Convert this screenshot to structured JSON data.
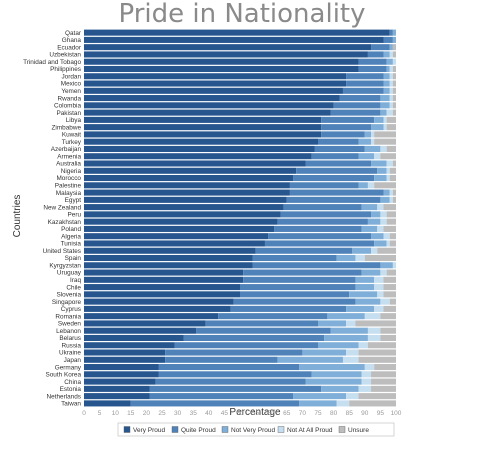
{
  "chart_data": {
    "type": "bar",
    "orientation": "horizontal",
    "stacked": true,
    "title": "Pride in Nationality",
    "xlabel": "Percentage",
    "ylabel": "Countries",
    "xlim": [
      0,
      100
    ],
    "xticks": [
      "0",
      "5",
      "10",
      "15",
      "20",
      "25",
      "30",
      "35",
      "40",
      "45",
      "50",
      "55",
      "60",
      "65",
      "70",
      "75",
      "80",
      "85",
      "90",
      "95",
      "100"
    ],
    "grid": false,
    "legend_position": "bottom",
    "colors": [
      "#27568f",
      "#4f82b8",
      "#7fafd8",
      "#c5def0",
      "#bdbdbd"
    ],
    "categories": [
      "Qatar",
      "Ghana",
      "Ecuador",
      "Uzbekistan",
      "Trinidad and Tobago",
      "Philippines",
      "Jordan",
      "Mexico",
      "Yemen",
      "Rwanda",
      "Colombia",
      "Pakistan",
      "Libya",
      "Zimbabwe",
      "Kuwait",
      "Turkey",
      "Azerbaijan",
      "Armenia",
      "Australia",
      "Nigeria",
      "Morocco",
      "Palestine",
      "Malaysia",
      "Egypt",
      "New Zealand",
      "Peru",
      "Kazakhstan",
      "Poland",
      "Algeria",
      "Tunisia",
      "United States",
      "Spain",
      "Kyrgyzstan",
      "Uruguay",
      "Iraq",
      "Chile",
      "Slovenia",
      "Singapore",
      "Cyprus",
      "Romania",
      "Sweden",
      "Lebanon",
      "Belarus",
      "Russia",
      "Ukraine",
      "Japan",
      "Germany",
      "South Korea",
      "China",
      "Estonia",
      "Netherlands",
      "Taiwan"
    ],
    "series": [
      {
        "name": "Very Proud",
        "values": [
          98,
          96,
          92,
          91,
          88,
          88,
          84,
          84,
          83,
          82,
          80,
          79,
          76,
          76,
          76,
          75,
          74,
          73,
          71,
          68,
          67,
          66,
          66,
          65,
          64,
          63,
          62,
          61,
          59,
          58,
          55,
          54,
          54,
          51,
          51,
          50,
          50,
          48,
          47,
          43,
          39,
          36,
          32,
          29,
          26,
          26,
          24,
          24,
          23,
          21,
          21,
          15
        ]
      },
      {
        "name": "Quite Proud",
        "values": [
          1,
          3,
          6,
          5,
          9,
          9,
          12,
          12,
          13,
          13,
          15,
          16,
          17,
          16,
          14,
          13,
          16,
          15,
          21,
          26,
          26,
          22,
          30,
          30,
          25,
          29,
          29,
          28,
          33,
          35,
          31,
          27,
          41,
          38,
          36,
          37,
          35,
          39,
          37,
          35,
          36,
          43,
          45,
          46,
          44,
          36,
          45,
          49,
          48,
          55,
          46,
          54
        ]
      },
      {
        "name": "Not Very Proud",
        "values": [
          1,
          1,
          1,
          2,
          2,
          1,
          2,
          2,
          2,
          3,
          3,
          2,
          3,
          4,
          2,
          4,
          5,
          5,
          5,
          3,
          4,
          3,
          2,
          3,
          5,
          3,
          4,
          5,
          4,
          4,
          6,
          6,
          4,
          6,
          6,
          6,
          9,
          8,
          9,
          12,
          9,
          12,
          14,
          13,
          14,
          21,
          21,
          16,
          18,
          12,
          17,
          12
        ]
      },
      {
        "name": "Not At All Proud",
        "values": [
          0,
          0,
          0,
          1,
          1,
          1,
          1,
          1,
          1,
          1,
          1,
          2,
          1,
          1,
          1,
          1,
          2,
          2,
          2,
          1,
          1,
          2,
          1,
          1,
          2,
          2,
          2,
          2,
          2,
          1,
          2,
          3,
          1,
          2,
          3,
          3,
          2,
          3,
          3,
          5,
          3,
          4,
          4,
          3,
          4,
          5,
          3,
          3,
          3,
          4,
          4,
          4
        ]
      },
      {
        "name": "Unsure",
        "values": [
          0,
          0,
          1,
          1,
          0,
          1,
          1,
          1,
          1,
          1,
          1,
          1,
          3,
          3,
          7,
          7,
          3,
          5,
          1,
          2,
          2,
          7,
          1,
          1,
          4,
          3,
          3,
          4,
          2,
          2,
          6,
          10,
          0,
          3,
          4,
          4,
          4,
          2,
          4,
          5,
          13,
          5,
          5,
          9,
          12,
          12,
          7,
          8,
          8,
          8,
          12,
          15
        ]
      }
    ]
  }
}
